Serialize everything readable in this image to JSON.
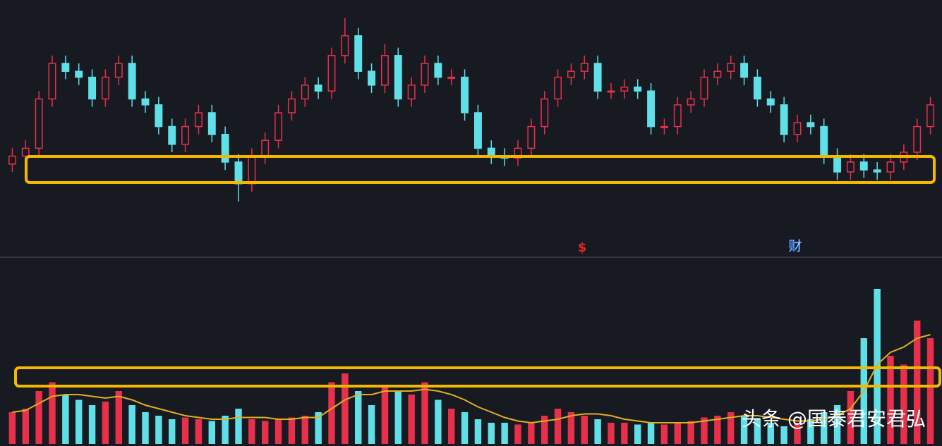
{
  "chart_data": {
    "type": "candlestick",
    "open": [
      24,
      28,
      32,
      57,
      75,
      71,
      68,
      57,
      68,
      75,
      57,
      54,
      43,
      34,
      43,
      50,
      39,
      25,
      14,
      28,
      36,
      50,
      57,
      64,
      61,
      79,
      89,
      71,
      64,
      79,
      57,
      64,
      75,
      68,
      68,
      50,
      32,
      28,
      27,
      32,
      43,
      57,
      68,
      71,
      75,
      61,
      61,
      63,
      61,
      43,
      43,
      54,
      57,
      68,
      71,
      75,
      68,
      57,
      54,
      39,
      45,
      43,
      28,
      20,
      25,
      21,
      20,
      25,
      30,
      43
    ],
    "high": [
      32,
      36,
      61,
      79,
      79,
      75,
      72,
      72,
      79,
      79,
      61,
      58,
      47,
      47,
      54,
      54,
      43,
      29,
      32,
      40,
      54,
      61,
      68,
      68,
      83,
      98,
      93,
      75,
      85,
      83,
      68,
      79,
      79,
      72,
      72,
      54,
      36,
      32,
      36,
      47,
      61,
      72,
      75,
      79,
      79,
      65,
      67,
      67,
      65,
      47,
      58,
      61,
      72,
      75,
      79,
      79,
      72,
      61,
      58,
      49,
      49,
      47,
      32,
      29,
      29,
      25,
      29,
      34,
      47,
      58
    ],
    "low": [
      20,
      24,
      28,
      53,
      67,
      64,
      53,
      53,
      64,
      53,
      50,
      39,
      30,
      30,
      39,
      35,
      21,
      5,
      10,
      24,
      32,
      46,
      53,
      57,
      57,
      75,
      67,
      60,
      60,
      53,
      53,
      60,
      64,
      64,
      46,
      28,
      24,
      23,
      23,
      28,
      39,
      53,
      64,
      67,
      57,
      57,
      57,
      57,
      39,
      39,
      39,
      50,
      53,
      64,
      67,
      64,
      53,
      50,
      35,
      35,
      39,
      24,
      16,
      16,
      17,
      16,
      16,
      21,
      26,
      39
    ],
    "close": [
      28,
      32,
      57,
      75,
      71,
      68,
      57,
      68,
      75,
      57,
      54,
      43,
      34,
      43,
      50,
      39,
      25,
      14,
      28,
      36,
      50,
      57,
      64,
      61,
      79,
      89,
      71,
      64,
      79,
      57,
      64,
      75,
      68,
      68,
      50,
      32,
      28,
      27,
      32,
      43,
      57,
      68,
      71,
      75,
      61,
      61,
      63,
      61,
      43,
      43,
      54,
      57,
      68,
      71,
      75,
      68,
      57,
      54,
      39,
      45,
      43,
      28,
      20,
      25,
      21,
      20,
      25,
      30,
      43,
      54
    ],
    "volume": [
      18,
      20,
      30,
      35,
      28,
      25,
      22,
      24,
      30,
      22,
      18,
      16,
      14,
      15,
      14,
      13,
      16,
      20,
      14,
      13,
      14,
      15,
      16,
      18,
      35,
      40,
      30,
      22,
      32,
      30,
      28,
      35,
      25,
      20,
      18,
      14,
      12,
      12,
      11,
      12,
      16,
      20,
      18,
      16,
      14,
      12,
      12,
      11,
      12,
      11,
      12,
      13,
      15,
      16,
      18,
      16,
      14,
      12,
      10,
      12,
      14,
      18,
      22,
      30,
      60,
      88,
      50,
      45,
      70,
      60
    ],
    "volume_ma": [
      18,
      19,
      23,
      27,
      28,
      28,
      27,
      26,
      27,
      25,
      22,
      20,
      18,
      16,
      15,
      14,
      14,
      15,
      15,
      15,
      14,
      14,
      15,
      15,
      20,
      25,
      28,
      28,
      30,
      30,
      30,
      31,
      30,
      28,
      25,
      21,
      18,
      15,
      13,
      12,
      13,
      14,
      16,
      17,
      17,
      16,
      14,
      13,
      12,
      12,
      12,
      12,
      13,
      14,
      15,
      16,
      16,
      15,
      14,
      13,
      13,
      14,
      16,
      20,
      30,
      45,
      52,
      55,
      60,
      62
    ],
    "up_color": "#e8304a",
    "down_color": "#5fe0e8",
    "ma_color": "#e0b020",
    "ylim": [
      0,
      100
    ],
    "volume_ylim": [
      0,
      100
    ],
    "annotations": [
      "$",
      "财"
    ],
    "watermark": "头条 @国泰君安君弘"
  }
}
